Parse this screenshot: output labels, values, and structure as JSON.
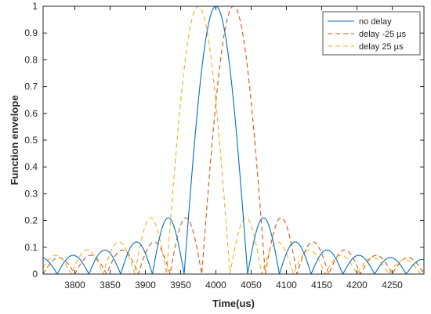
{
  "chart_data": {
    "type": "line",
    "xlabel": "Time(us)",
    "ylabel": "Function envelope",
    "xlim": [
      3755,
      4295
    ],
    "ylim": [
      0,
      1.0
    ],
    "x_ticks": [
      3800,
      3850,
      3900,
      3950,
      4000,
      4050,
      4100,
      4150,
      4200,
      4250
    ],
    "x_tick_labels": [
      "3800",
      "3850",
      "3900",
      "3950",
      "4000",
      "4050",
      "4100",
      "4150",
      "4200",
      "4250"
    ],
    "y_ticks": [
      0,
      0.1,
      0.2,
      0.3,
      0.4,
      0.5,
      0.6,
      0.7,
      0.8,
      0.9,
      1
    ],
    "y_tick_labels": [
      "0",
      "0.1",
      "0.2",
      "0.3",
      "0.4",
      "0.5",
      "0.6",
      "0.7",
      "0.8",
      "0.9",
      "1"
    ],
    "grid": false,
    "legend_position": "top-right",
    "function": "abs(sinc)",
    "main_lobe_halfwidth_us": 45,
    "sidelobe_spacing_us": 45,
    "series": [
      {
        "name": "no delay",
        "center": 4000,
        "color": "#0072BD",
        "style": "solid",
        "peak": 1.0,
        "sidelobe_peaks": [
          0.21,
          0.12,
          0.09,
          0.07
        ]
      },
      {
        "name": "delay -25 µs",
        "center": 4025,
        "color": "#D95319",
        "style": "dashed",
        "peak": 1.0,
        "sidelobe_peaks": [
          0.21,
          0.12,
          0.09,
          0.07
        ]
      },
      {
        "name": "delay 25 µs",
        "center": 3975,
        "color": "#EDB120",
        "style": "dashed",
        "peak": 1.0,
        "sidelobe_peaks": [
          0.21,
          0.12,
          0.09,
          0.07
        ]
      }
    ]
  }
}
